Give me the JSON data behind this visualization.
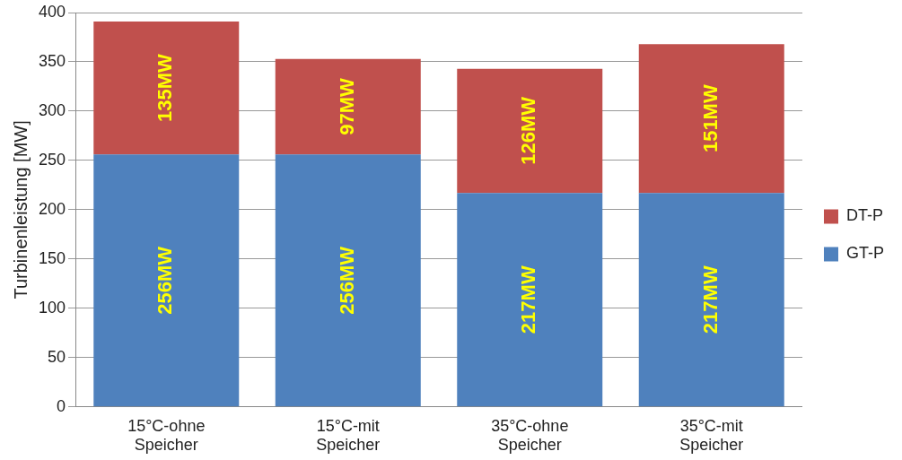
{
  "chart_data": {
    "type": "bar",
    "ylabel": "Turbinenleistung [MW]",
    "stacked": true,
    "categories": [
      "15°C-ohne Speicher",
      "15°C-mit Speicher",
      "35°C-ohne Speicher",
      "35°C-mit Speicher"
    ],
    "series": [
      {
        "name": "GT-P",
        "color": "#4f81bd",
        "values": [
          256,
          256,
          217,
          217
        ],
        "value_labels": [
          "256MW",
          "256MW",
          "217MW",
          "217MW"
        ]
      },
      {
        "name": "DT-P",
        "color": "#c0504d",
        "values": [
          135,
          97,
          126,
          151
        ],
        "value_labels": [
          "135MW",
          "97MW",
          "126MW",
          "151MW"
        ]
      }
    ],
    "ylim": [
      0,
      400
    ],
    "yticks": [
      0,
      50,
      100,
      150,
      200,
      250,
      300,
      350,
      400
    ],
    "grid": "y",
    "legend": "right"
  }
}
